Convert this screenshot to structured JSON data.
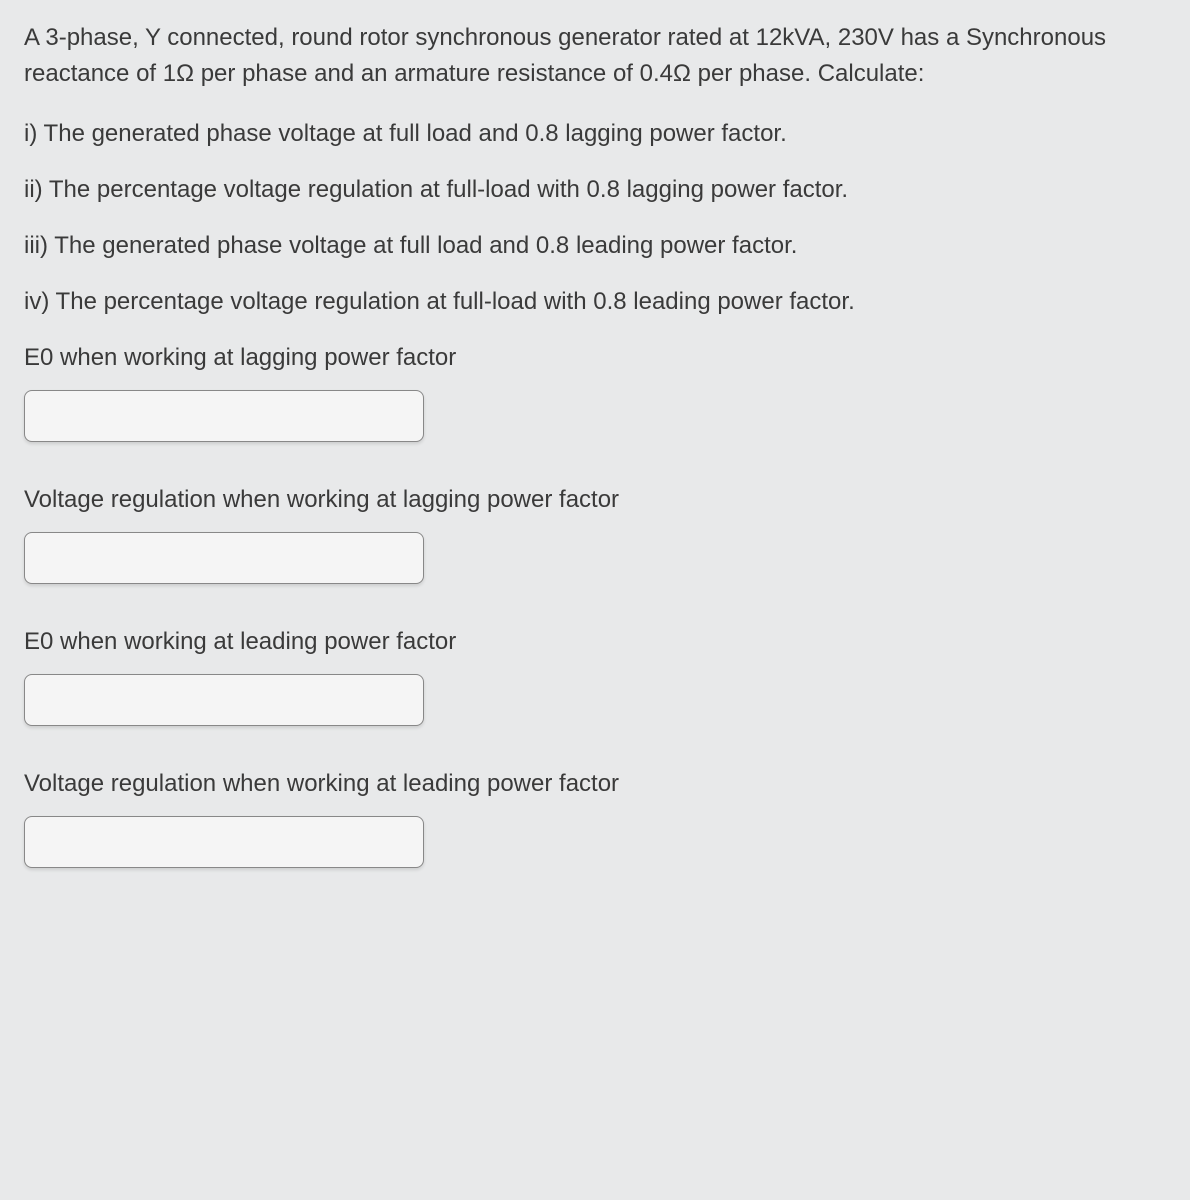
{
  "colors": {
    "background": "#e8e9ea",
    "text": "#3a3a3a",
    "input_bg": "#f5f5f5",
    "input_border": "#888888"
  },
  "typography": {
    "font_family": "Arial, Helvetica, sans-serif",
    "body_fontsize": 24,
    "line_height": 1.5
  },
  "question": {
    "intro": "A 3-phase, Y connected, round rotor synchronous generator rated at 12kVA, 230V has a Synchronous reactance of 1Ω per phase and an armature resistance of 0.4Ω per phase. Calculate:",
    "parts": [
      "i) The generated phase voltage at full load and 0.8 lagging power factor.",
      "ii) The percentage voltage regulation at full-load with 0.8 lagging power factor.",
      "iii) The generated phase voltage at full load and 0.8 leading power factor.",
      "iv) The percentage voltage regulation at full-load with 0.8 leading power factor."
    ]
  },
  "answers": [
    {
      "label": "E0 when working at lagging power factor",
      "value": ""
    },
    {
      "label": "Voltage regulation when working at lagging power factor",
      "value": ""
    },
    {
      "label": "E0 when working at leading power factor",
      "value": ""
    },
    {
      "label": "Voltage regulation when working at leading power factor",
      "value": ""
    }
  ]
}
